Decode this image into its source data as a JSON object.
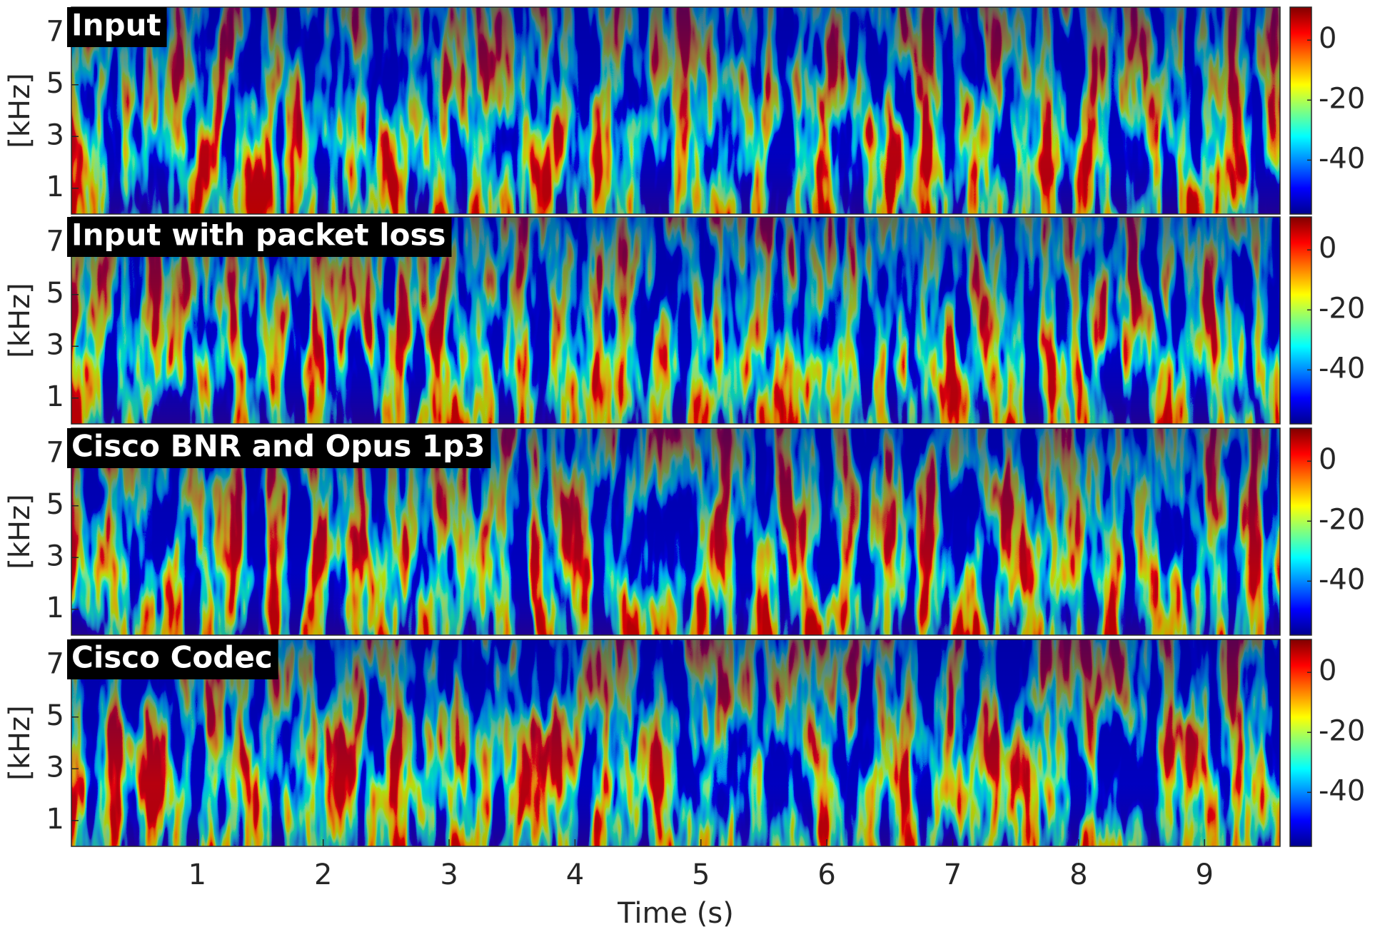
{
  "chart_data": [
    {
      "type": "spectrogram",
      "title": "Input",
      "ylabel": "[kHz]",
      "xlim": [
        0,
        9.6
      ],
      "ylim": [
        0,
        8
      ],
      "yticks": [
        1,
        3,
        5,
        7
      ],
      "clim": [
        -58,
        11
      ],
      "cticks": [
        0,
        -20,
        -40
      ],
      "colormap": "jet"
    },
    {
      "type": "spectrogram",
      "title": "Input with packet loss",
      "ylabel": "[kHz]",
      "xlim": [
        0,
        9.6
      ],
      "ylim": [
        0,
        8
      ],
      "yticks": [
        1,
        3,
        5,
        7
      ],
      "clim": [
        -58,
        11
      ],
      "cticks": [
        0,
        -20,
        -40
      ],
      "colormap": "jet"
    },
    {
      "type": "spectrogram",
      "title": "Cisco BNR and Opus 1p3",
      "ylabel": "[kHz]",
      "xlim": [
        0,
        9.6
      ],
      "ylim": [
        0,
        8
      ],
      "yticks": [
        1,
        3,
        5,
        7
      ],
      "clim": [
        -58,
        11
      ],
      "cticks": [
        0,
        -20,
        -40
      ],
      "colormap": "jet"
    },
    {
      "type": "spectrogram",
      "title": "Cisco Codec",
      "ylabel": "[kHz]",
      "xlabel": "Time (s)",
      "xlim": [
        0,
        9.6
      ],
      "xticks": [
        1,
        2,
        3,
        4,
        5,
        6,
        7,
        8,
        9
      ],
      "ylim": [
        0,
        8
      ],
      "yticks": [
        1,
        3,
        5,
        7
      ],
      "clim": [
        -58,
        11
      ],
      "cticks": [
        0,
        -20,
        -40
      ],
      "colormap": "jet"
    }
  ]
}
